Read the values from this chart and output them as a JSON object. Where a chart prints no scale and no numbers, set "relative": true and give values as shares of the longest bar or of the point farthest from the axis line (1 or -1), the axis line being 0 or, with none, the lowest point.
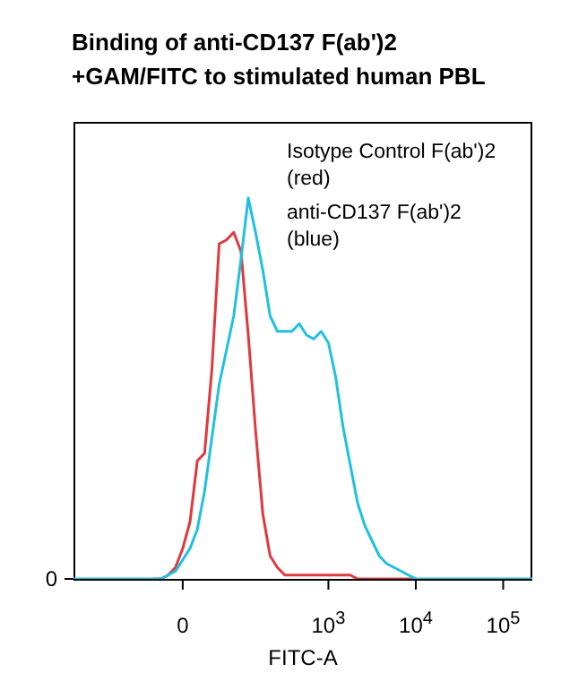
{
  "chart_data": {
    "type": "line",
    "title": "Binding of anti-CD137 F(ab')2 +GAM/FITC to stimulated human PBL",
    "xlabel": "FITC-A",
    "annotations": [
      "Isotype Control F(ab')2 (red)",
      "anti-CD137 F(ab')2 (blue)",
      "0"
    ],
    "relative": true,
    "marker": "none",
    "line_style": "solid",
    "categories": [
      null,
      null,
      null,
      null,
      null,
      null,
      null,
      null,
      null,
      null,
      null,
      null,
      null,
      null,
      null,
      "0",
      null,
      null,
      null,
      null,
      null,
      null,
      null,
      null,
      null,
      null,
      null,
      null,
      null,
      null,
      null,
      null,
      null,
      null,
      null,
      "10$^{3}$",
      null,
      null,
      null,
      null,
      null,
      null,
      null,
      null,
      null,
      null,
      null,
      "10$^{4}$",
      null,
      null,
      null,
      null,
      null,
      null,
      null,
      null,
      null,
      null,
      null,
      "10$^{5}$",
      null,
      null,
      null,
      null
    ],
    "series": [
      {
        "color": "#e0393e",
        "values": [
          null,
          null,
          null,
          null,
          null,
          null,
          null,
          null,
          null,
          null,
          null,
          0,
          0,
          0.01,
          0.03,
          0.08,
          0.15,
          0.31,
          0.33,
          0.55,
          0.88,
          0.89,
          0.91,
          0.86,
          0.64,
          0.39,
          0.17,
          0.06,
          0.03,
          0.01,
          0.01,
          0.01,
          0.01,
          0.01,
          0.01,
          0.01,
          0.01,
          0.01,
          0.01,
          0,
          0,
          0,
          0,
          0,
          0,
          0,
          0,
          0,
          null,
          null,
          null,
          null,
          null,
          null,
          null,
          null,
          null,
          null,
          null,
          null,
          null,
          null,
          null,
          null
        ]
      },
      {
        "color": "#1fc0e0",
        "values": [
          0,
          0,
          0,
          0,
          0,
          0,
          0,
          0,
          0,
          0,
          0,
          0,
          0,
          0.01,
          0.02,
          0.05,
          0.08,
          0.13,
          0.23,
          0.37,
          0.51,
          0.6,
          0.69,
          0.84,
          1,
          0.91,
          0.81,
          0.69,
          0.65,
          0.65,
          0.65,
          0.67,
          0.64,
          0.63,
          0.65,
          0.62,
          0.53,
          0.4,
          0.3,
          0.2,
          0.14,
          0.1,
          0.06,
          0.04,
          0.03,
          0.02,
          0.01,
          0,
          0,
          0,
          0,
          0,
          0,
          0,
          0,
          0,
          0,
          0,
          0,
          0,
          0,
          0,
          0,
          0
        ]
      }
    ]
  }
}
